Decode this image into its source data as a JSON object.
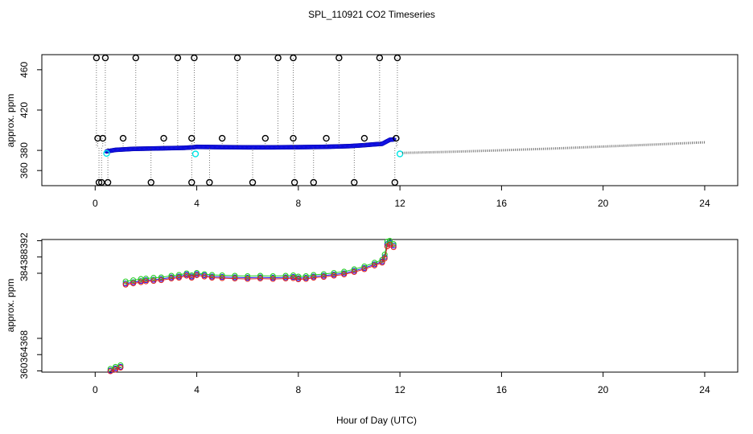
{
  "chart_data": {
    "title": "SPL_110921  CO2 Timeseries",
    "xlabel": "Hour of Day (UTC)",
    "panels": [
      {
        "id": "top",
        "type": "scatter",
        "ylabel": "approx. ppm",
        "xlim": [
          -2.1,
          25.3
        ],
        "ylim": [
          345,
          475
        ],
        "xticks": [
          0,
          4,
          8,
          12,
          16,
          20,
          24
        ],
        "yticks": [
          360,
          380,
          420,
          460
        ],
        "grid": false,
        "colors": {
          "main": "#1a1aff",
          "outlier": "#000000",
          "mean": "#00e5e5",
          "drift": "#444444"
        },
        "series": [
          {
            "role": "main",
            "style": "filled-dots",
            "color": "#1a1aff",
            "x": [
              0.45,
              0.8,
              1.5,
              2.5,
              3.5,
              3.8,
              4.0,
              5.0,
              6.0,
              7.0,
              7.8,
              8.0,
              9.0,
              10.0,
              10.5,
              11.0,
              11.3,
              11.45,
              11.6,
              11.8
            ],
            "y": [
              379,
              380.5,
              381.5,
              382,
              382.5,
              383,
              383.5,
              383.2,
              383,
              383,
              383.2,
              383.2,
              383.5,
              384.2,
              385,
              386,
              386.5,
              388.5,
              390.5,
              391
            ]
          },
          {
            "role": "outlier-high",
            "style": "open-circles",
            "color": "#000000",
            "x": [
              0.05,
              0.4,
              1.6,
              3.25,
              3.9,
              5.6,
              7.2,
              7.8,
              9.6,
              11.2,
              11.9
            ],
            "y": [
              473,
              473,
              473,
              473,
              473,
              473,
              473,
              473,
              473,
              473,
              473
            ]
          },
          {
            "role": "outlier-mid",
            "style": "open-circles",
            "color": "#000000",
            "x": [
              0.1,
              0.3,
              1.1,
              2.7,
              3.8,
              5.0,
              6.7,
              7.8,
              9.1,
              10.6,
              11.85
            ],
            "y": [
              392,
              392,
              392,
              392,
              392,
              392,
              392,
              392,
              392,
              392,
              392
            ]
          },
          {
            "role": "outlier-low",
            "style": "open-circles",
            "color": "#000000",
            "x": [
              0.15,
              0.25,
              0.5,
              2.2,
              3.8,
              4.5,
              6.2,
              7.85,
              8.6,
              10.2,
              11.8
            ],
            "y": [
              348,
              348,
              348,
              348,
              348,
              348,
              348,
              348,
              348,
              348,
              348
            ]
          },
          {
            "role": "mean",
            "style": "open-circles",
            "color": "#00e5e5",
            "x": [
              0.45,
              3.95,
              12.0
            ],
            "y": [
              377,
              376.5,
              376.5
            ]
          },
          {
            "role": "drift",
            "style": "dotted-line",
            "color": "#444444",
            "x": [
              12.1,
              14,
              16,
              18,
              20,
              22,
              24
            ],
            "y": [
              377.5,
              378.6,
              380.1,
              381.8,
              383.8,
              385.8,
              388
            ]
          }
        ]
      },
      {
        "id": "bottom",
        "type": "line",
        "ylabel": "approx. ppm",
        "xlim": [
          -2.1,
          25.3
        ],
        "ylim": [
          359.7,
          392.3
        ],
        "xticks": [
          0,
          4,
          8,
          12,
          16,
          20,
          24
        ],
        "yticks": [
          360,
          364,
          368,
          384,
          388,
          392
        ],
        "grid": false,
        "colors": {
          "blue": "#1a1aff",
          "green": "#22cc22",
          "red": "#dd2222"
        },
        "series": [
          {
            "role": "main",
            "style": "line-circles",
            "color": "#1a1aff",
            "x": [
              0.6,
              0.8,
              1.0,
              1.2,
              1.5,
              1.8,
              2.0,
              2.3,
              2.6,
              3.0,
              3.3,
              3.6,
              3.8,
              4.0,
              4.3,
              4.6,
              5.0,
              5.5,
              6.0,
              6.5,
              7.0,
              7.5,
              7.8,
              8.0,
              8.3,
              8.6,
              9.0,
              9.4,
              9.8,
              10.2,
              10.6,
              11.0,
              11.3,
              11.4,
              11.5,
              11.6,
              11.75
            ],
            "y": [
              360.1,
              360.6,
              361.0,
              381.5,
              381.8,
              382.1,
              382.3,
              382.4,
              382.6,
              383.0,
              383.2,
              383.7,
              383.2,
              383.8,
              383.5,
              383.2,
              383.1,
              383.0,
              382.9,
              383.0,
              382.9,
              383.0,
              383.1,
              382.8,
              382.9,
              383.2,
              383.4,
              383.7,
              384.0,
              384.6,
              385.3,
              386.2,
              386.9,
              388.0,
              391.2,
              391.5,
              390.8
            ]
          },
          {
            "role": "upper",
            "style": "line-circles",
            "color": "#22cc22",
            "x": [
              0.6,
              0.8,
              1.0,
              1.2,
              1.5,
              1.8,
              2.0,
              2.3,
              2.6,
              3.0,
              3.3,
              3.6,
              3.8,
              4.0,
              4.3,
              4.6,
              5.0,
              5.5,
              6.0,
              6.5,
              7.0,
              7.5,
              7.8,
              8.0,
              8.3,
              8.6,
              9.0,
              9.4,
              9.8,
              10.2,
              10.6,
              11.0,
              11.3,
              11.4,
              11.5,
              11.6,
              11.75
            ],
            "y": [
              360.5,
              361.0,
              361.4,
              382.0,
              382.3,
              382.6,
              382.7,
              382.9,
              383.0,
              383.4,
              383.6,
              384.0,
              383.5,
              384.1,
              383.8,
              383.6,
              383.5,
              383.4,
              383.3,
              383.4,
              383.3,
              383.4,
              383.5,
              383.2,
              383.3,
              383.6,
              383.8,
              384.1,
              384.4,
              385.0,
              385.7,
              386.6,
              387.3,
              388.6,
              391.8,
              392.0,
              391.2
            ]
          },
          {
            "role": "lower",
            "style": "line-circles",
            "color": "#dd2222",
            "x": [
              0.6,
              0.8,
              1.0,
              1.2,
              1.5,
              1.8,
              2.0,
              2.3,
              2.6,
              3.0,
              3.3,
              3.6,
              3.8,
              4.0,
              4.3,
              4.6,
              5.0,
              5.5,
              6.0,
              6.5,
              7.0,
              7.5,
              7.8,
              8.0,
              8.3,
              8.6,
              9.0,
              9.4,
              9.8,
              10.2,
              10.6,
              11.0,
              11.3,
              11.4,
              11.5,
              11.6,
              11.75
            ],
            "y": [
              359.9,
              360.3,
              360.8,
              381.2,
              381.5,
              381.8,
              382.0,
              382.1,
              382.3,
              382.7,
              382.9,
              383.4,
              382.9,
              383.5,
              383.2,
              382.9,
              382.8,
              382.7,
              382.6,
              382.7,
              382.6,
              382.7,
              382.8,
              382.5,
              382.6,
              382.9,
              383.1,
              383.4,
              383.7,
              384.3,
              385.0,
              385.9,
              386.6,
              387.6,
              390.6,
              391.0,
              390.4
            ]
          }
        ]
      }
    ]
  }
}
